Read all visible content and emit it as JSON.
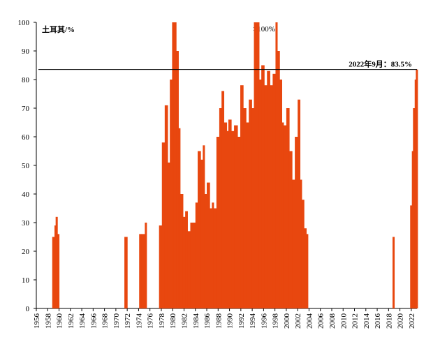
{
  "chart_data": {
    "type": "bar",
    "y_label": "土耳其/%",
    "annotation": ">100%",
    "ref_line": {
      "value": 83.5,
      "label": "2022年9月：83.5%"
    },
    "color": "#e8470f",
    "xlim": [
      1956,
      2023
    ],
    "xticks": [
      1956,
      1958,
      1960,
      1962,
      1964,
      1966,
      1968,
      1970,
      1972,
      1974,
      1976,
      1978,
      1980,
      1982,
      1984,
      1986,
      1988,
      1990,
      1992,
      1994,
      1996,
      1998,
      2000,
      2002,
      2004,
      2006,
      2008,
      2010,
      2012,
      2014,
      2016,
      2018,
      2020,
      2022
    ],
    "ylim": [
      0,
      100
    ],
    "yticks": [
      0,
      10,
      20,
      30,
      40,
      50,
      60,
      70,
      80,
      90,
      100
    ],
    "grid": false,
    "x": [
      1958.8,
      1959.2,
      1959.4,
      1959.7,
      1971.5,
      1971.7,
      1974.1,
      1974.5,
      1975.1,
      1977.6,
      1978.1,
      1978.6,
      1979.1,
      1979.5,
      1979.9,
      1980.2,
      1980.6,
      1981.0,
      1981.3,
      1981.8,
      1982.2,
      1982.6,
      1983.1,
      1983.6,
      1984.0,
      1984.4,
      1984.9,
      1985.3,
      1985.6,
      1986.0,
      1986.5,
      1986.9,
      1987.2,
      1987.7,
      1988.2,
      1988.6,
      1989.0,
      1989.5,
      1989.8,
      1990.3,
      1990.8,
      1991.4,
      1991.9,
      1992.4,
      1992.9,
      1993.4,
      1993.9,
      1994.3,
      1994.7,
      1995.2,
      1995.6,
      1996.1,
      1996.6,
      1997.1,
      1997.6,
      1998.1,
      1998.4,
      1998.8,
      1999.2,
      1999.5,
      2000.0,
      2000.5,
      2001.0,
      2001.5,
      2002.0,
      2002.4,
      2002.7,
      2003.1,
      2003.5,
      2018.7,
      2021.8,
      2022.1,
      2022.3,
      2022.6,
      2022.8
    ],
    "values": [
      25,
      29,
      32,
      26,
      25,
      25,
      26,
      26,
      30,
      29,
      58,
      71,
      51,
      80,
      100,
      100,
      90,
      63,
      40,
      32,
      34,
      27,
      30,
      30,
      37,
      55,
      52,
      57,
      40,
      44,
      35,
      37,
      35,
      60,
      70,
      76,
      65,
      62,
      66,
      62,
      64,
      60,
      78,
      70,
      65,
      73,
      70,
      100,
      100,
      80,
      85,
      78,
      83,
      78,
      82,
      100,
      90,
      80,
      65,
      64,
      70,
      55,
      45,
      60,
      73,
      45,
      38,
      28,
      26,
      25,
      36,
      55,
      70,
      80,
      83.5
    ]
  }
}
